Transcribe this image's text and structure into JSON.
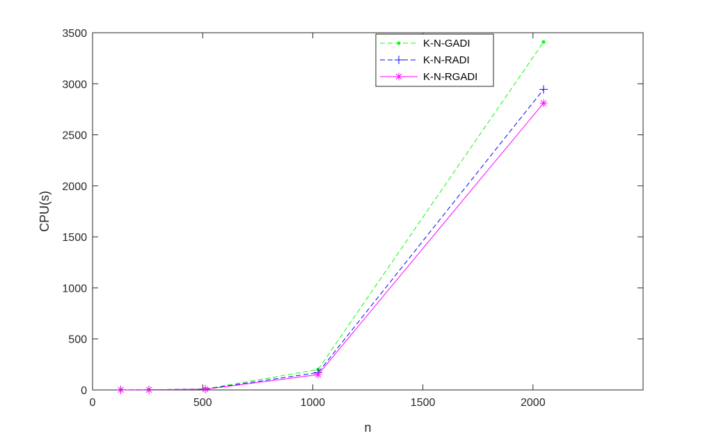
{
  "chart_data": {
    "type": "line",
    "title": "",
    "xlabel": "n",
    "ylabel": "CPU(s)",
    "xlim": [
      0,
      2500
    ],
    "ylim": [
      0,
      3500
    ],
    "xticks": [
      0,
      500,
      1000,
      1500,
      2000
    ],
    "yticks": [
      0,
      500,
      1000,
      1500,
      2000,
      2500,
      3000,
      3500
    ],
    "x": [
      128,
      256,
      512,
      1024,
      2048
    ],
    "grid": false,
    "box": true,
    "legend_position": "top-right",
    "series": [
      {
        "name": "K-N-GADI",
        "values": [
          1,
          2,
          10,
          200,
          3410
        ],
        "color": "#00ff00",
        "line_style": "dashed",
        "marker": "dot"
      },
      {
        "name": "K-N-RADI",
        "values": [
          1,
          2,
          8,
          170,
          2945
        ],
        "color": "#0000ff",
        "line_style": "dashed",
        "marker": "plus"
      },
      {
        "name": "K-N-RGADI",
        "values": [
          1,
          2,
          7,
          150,
          2810
        ],
        "color": "#ff00ff",
        "line_style": "solid",
        "marker": "asterisk"
      }
    ]
  }
}
